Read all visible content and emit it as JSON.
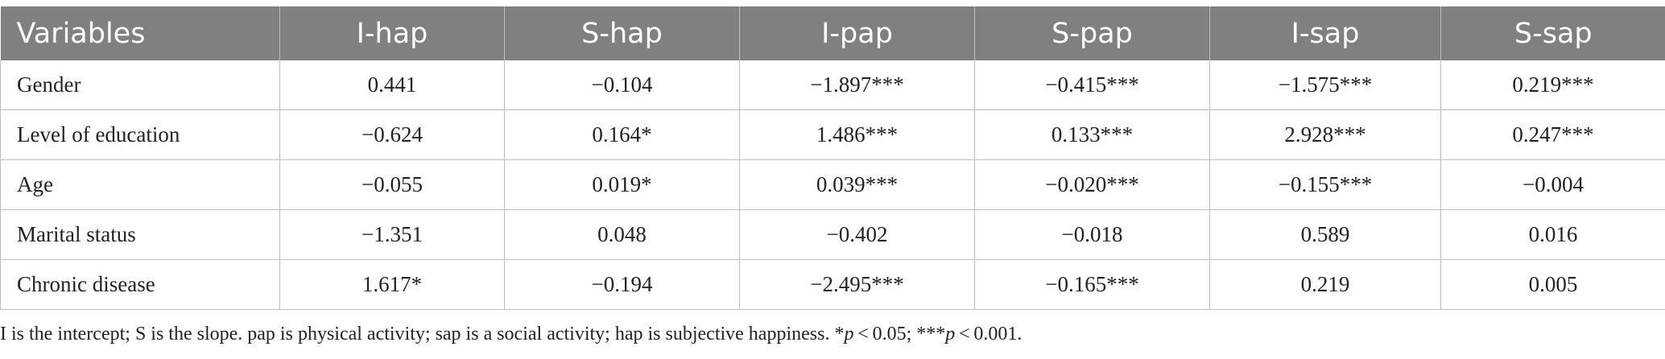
{
  "table": {
    "headers": [
      "Variables",
      "I-hap",
      "S-hap",
      "I-pap",
      "S-pap",
      "I-sap",
      "S-sap"
    ],
    "rows": [
      [
        "Gender",
        "0.441",
        "−0.104",
        "−1.897***",
        "−0.415***",
        "−1.575***",
        "0.219***"
      ],
      [
        "Level of education",
        "−0.624",
        "0.164*",
        "1.486***",
        "0.133***",
        "2.928***",
        "0.247***"
      ],
      [
        "Age",
        "−0.055",
        "0.019*",
        "0.039***",
        "−0.020***",
        "−0.155***",
        "−0.004"
      ],
      [
        "Marital status",
        "−1.351",
        "0.048",
        "−0.402",
        "−0.018",
        "0.589",
        "0.016"
      ],
      [
        "Chronic disease",
        "1.617*",
        "−0.194",
        "−2.495***",
        "−0.165***",
        "0.219",
        "0.005"
      ]
    ]
  },
  "footnote": {
    "text_main": "I is the intercept; S is the slope. pap is physical activity; sap is a social activity; hap is subjective happiness. *",
    "p1": "p",
    "thr1": " < 0.05; ***",
    "p2": "p",
    "thr2": " < 0.001."
  },
  "colors": {
    "header_bg": "#808080",
    "header_text": "#ffffff",
    "grid": "#bdbdbd",
    "body_text": "#222222"
  }
}
